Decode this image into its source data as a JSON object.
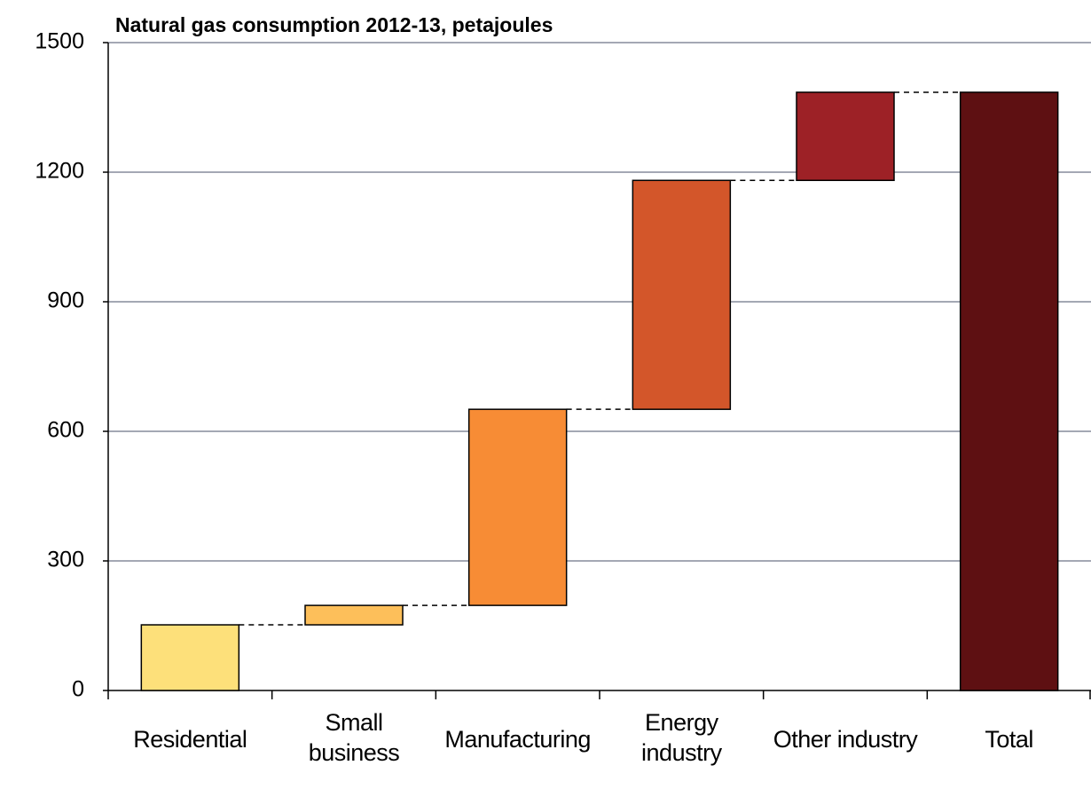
{
  "chart_data": {
    "type": "waterfall",
    "title": "Natural gas consumption 2012-13, petajoules",
    "categories": [
      "Residential",
      "Small business",
      "Manufacturing",
      "Energy industry",
      "Other industry",
      "Total"
    ],
    "values": [
      152,
      45,
      454,
      530,
      204,
      1385
    ],
    "colors": [
      "#fde07a",
      "#fdbf5a",
      "#f78c35",
      "#d3562a",
      "#9d2126",
      "#5e1012"
    ],
    "ylim": [
      0,
      1500
    ],
    "yticks": [
      0,
      300,
      600,
      900,
      1200,
      1500
    ],
    "grid": true
  }
}
